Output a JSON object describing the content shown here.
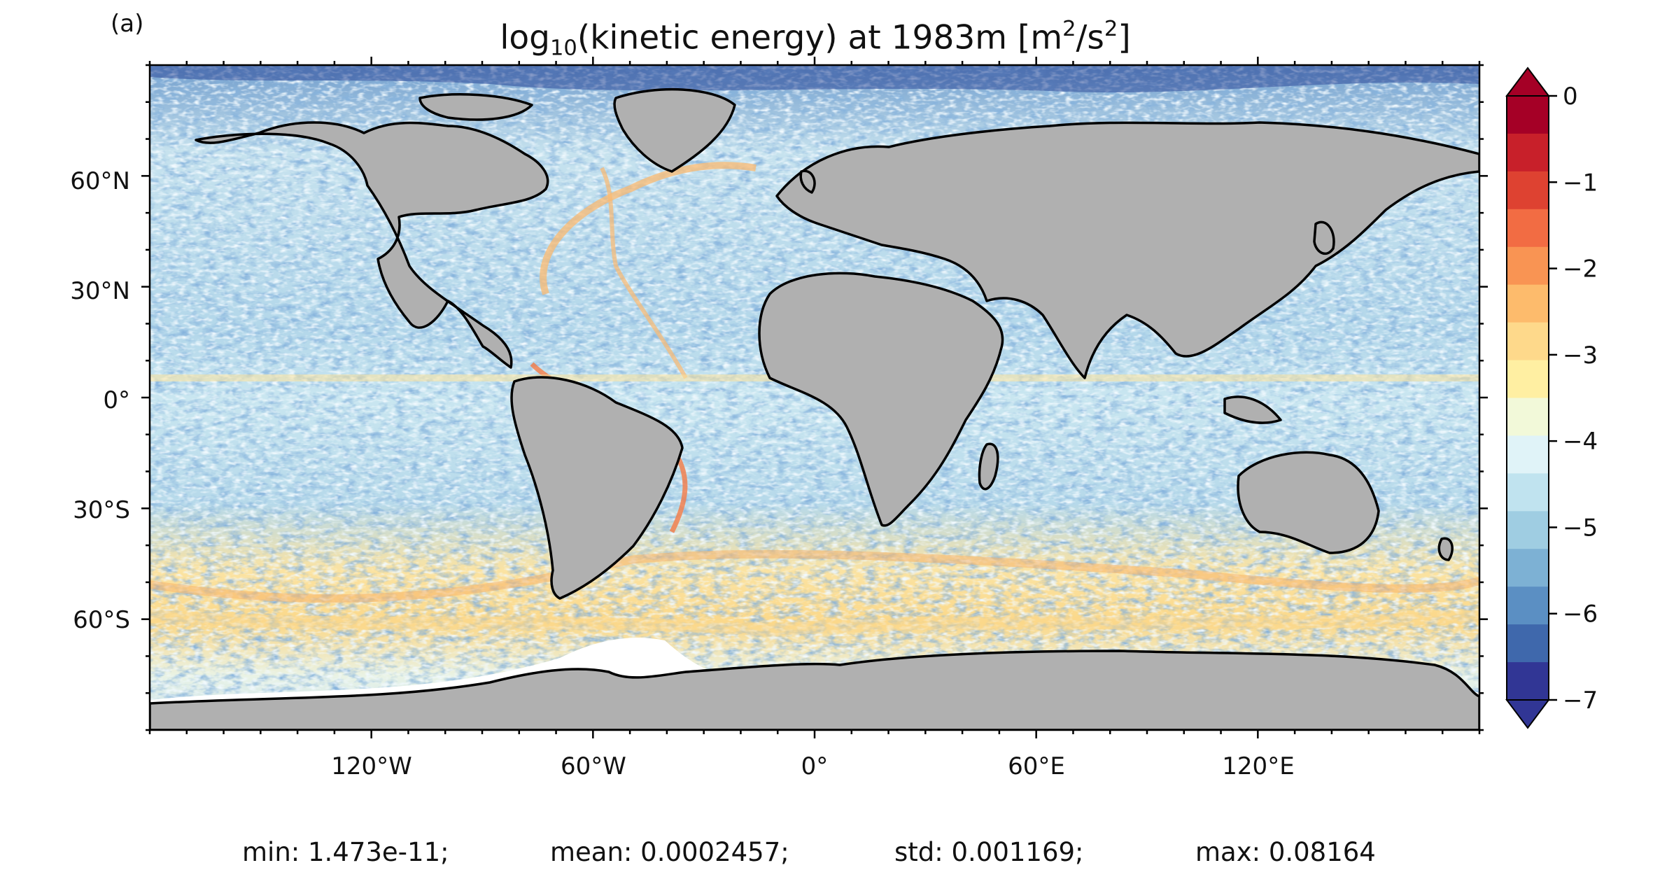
{
  "panel_label": "(a)",
  "title": {
    "prefix": "log",
    "subscript": "10",
    "middle": "(kinetic energy) at 1983m [m",
    "sup1": "2",
    "mid2": "/s",
    "sup2": "2",
    "suffix": "]"
  },
  "lat_ticks": [
    "60°N",
    "30°N",
    "0°",
    "30°S",
    "60°S"
  ],
  "lon_ticks": [
    "120°W",
    "60°W",
    "0°",
    "60°E",
    "120°E"
  ],
  "colorbar": {
    "tick_labels": [
      "0",
      "−1",
      "−2",
      "−3",
      "−4",
      "−5",
      "−6",
      "−7"
    ],
    "levels": [
      "#a50026",
      "#c8202a",
      "#de4231",
      "#f26c43",
      "#f99453",
      "#fdbb6c",
      "#fed98b",
      "#ffefa2",
      "#f2f9d9",
      "#e0f3f8",
      "#c0e3ef",
      "#9fcde2",
      "#7db1d4",
      "#5b8fc3",
      "#3f68ac",
      "#313695"
    ],
    "extend": "both"
  },
  "stats": {
    "min": "min: 1.473e-11;",
    "mean": "mean: 0.0002457;",
    "std": "std: 0.001169;",
    "max": "max: 0.08164"
  },
  "colors": {
    "land": "#b0b0b0",
    "coast": "#000000",
    "ocean_mid": "#a9cde3",
    "ocean_high": "#fdd385"
  }
}
